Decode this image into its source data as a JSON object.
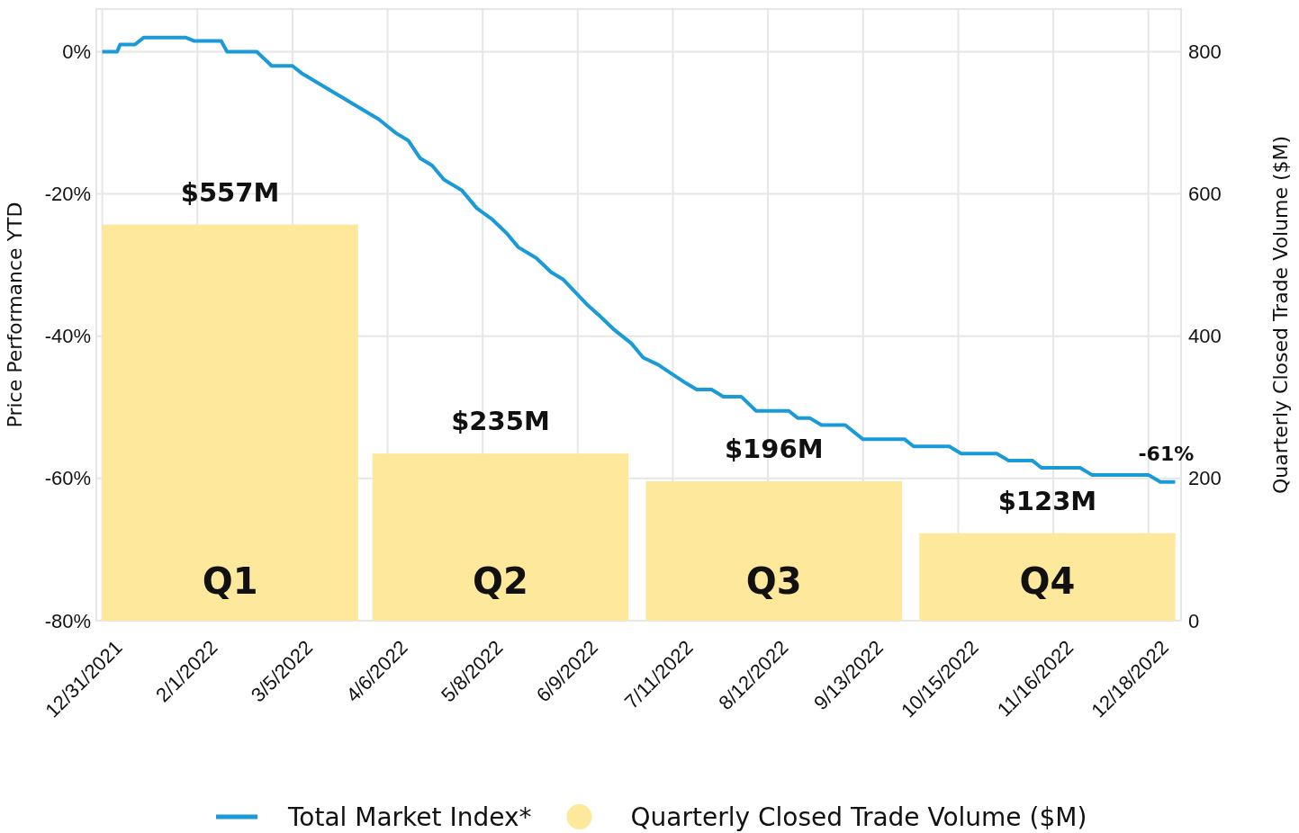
{
  "chart_data": {
    "type": "line",
    "ylabel": "Price Performance YTD",
    "y2label": "Quarterly  Closed Trade Volume ($M)",
    "xlim": [
      "2021-12-29",
      "2022-12-29"
    ],
    "ylim": [
      -80,
      6
    ],
    "y2lim": [
      0,
      860
    ],
    "xticks": [
      {
        "value": "2021-12-31",
        "label": "12/31/2021"
      },
      {
        "value": "2022-02-01",
        "label": "2/1/2022"
      },
      {
        "value": "2022-03-05",
        "label": "3/5/2022"
      },
      {
        "value": "2022-04-06",
        "label": "4/6/2022"
      },
      {
        "value": "2022-05-08",
        "label": "5/8/2022"
      },
      {
        "value": "2022-06-09",
        "label": "6/9/2022"
      },
      {
        "value": "2022-07-11",
        "label": "7/11/2022"
      },
      {
        "value": "2022-08-12",
        "label": "8/12/2022"
      },
      {
        "value": "2022-09-13",
        "label": "9/13/2022"
      },
      {
        "value": "2022-10-15",
        "label": "10/15/2022"
      },
      {
        "value": "2022-11-16",
        "label": "11/16/2022"
      },
      {
        "value": "2022-12-18",
        "label": "12/18/2022"
      }
    ],
    "yticks": [
      {
        "value": -80,
        "label": "-80%"
      },
      {
        "value": -60,
        "label": "-60%"
      },
      {
        "value": -40,
        "label": "-40%"
      },
      {
        "value": -20,
        "label": "-20%"
      },
      {
        "value": 0,
        "label": "0%"
      }
    ],
    "y2ticks": [
      0,
      200,
      400,
      600,
      800
    ],
    "grid": true,
    "legend": "bottom",
    "series": [
      {
        "name": "Quarterly Closed Trade Volume ($M)",
        "type": "bar",
        "axis": "y2",
        "color": "#fde89b",
        "x": [
          "2022-02-12",
          "2022-05-14",
          "2022-08-14",
          "2022-11-14"
        ],
        "values": [
          557,
          235,
          196,
          123
        ],
        "value_labels": [
          "$557M",
          "$235M",
          "$196M",
          "$123M"
        ]
      },
      {
        "name": "Total Market Index*",
        "color": "#1a9ad6",
        "x": [
          "2021-12-31",
          "2022-01-05",
          "2022-01-06",
          "2022-01-11",
          "2022-01-14",
          "2022-01-28",
          "2022-01-31",
          "2022-02-09",
          "2022-02-11",
          "2022-02-21",
          "2022-02-26",
          "2022-03-05",
          "2022-03-08",
          "2022-04-03",
          "2022-04-06",
          "2022-04-09",
          "2022-04-13",
          "2022-04-17",
          "2022-04-21",
          "2022-04-25",
          "2022-05-01",
          "2022-05-06",
          "2022-05-11",
          "2022-05-16",
          "2022-05-20",
          "2022-05-26",
          "2022-05-31",
          "2022-06-04",
          "2022-06-12",
          "2022-06-16",
          "2022-06-21",
          "2022-06-27",
          "2022-07-01",
          "2022-07-06",
          "2022-07-15",
          "2022-07-19",
          "2022-07-24",
          "2022-07-28",
          "2022-08-03",
          "2022-08-08",
          "2022-08-19",
          "2022-08-22",
          "2022-08-26",
          "2022-08-30",
          "2022-09-07",
          "2022-09-13",
          "2022-09-27",
          "2022-09-30",
          "2022-10-12",
          "2022-10-16",
          "2022-10-28",
          "2022-11-01",
          "2022-11-09",
          "2022-11-12",
          "2022-11-25",
          "2022-11-29",
          "2022-12-18",
          "2022-12-22",
          "2022-12-27"
        ],
        "values": [
          0,
          0,
          1,
          1,
          2,
          2,
          1.5,
          1.5,
          0,
          0,
          -2,
          -2,
          -3,
          -9.5,
          -10.5,
          -11.5,
          -12.5,
          -15,
          -16,
          -18,
          -19.5,
          -22,
          -23.5,
          -25.5,
          -27.5,
          -29,
          -31,
          -32,
          -35.5,
          -37,
          -39,
          -41,
          -43,
          -44,
          -46.5,
          -47.5,
          -47.5,
          -48.5,
          -48.5,
          -50.5,
          -50.5,
          -51.5,
          -51.5,
          -52.5,
          -52.5,
          -54.5,
          -54.5,
          -55.5,
          -55.5,
          -56.5,
          -56.5,
          -57.5,
          -57.5,
          -58.5,
          -58.5,
          -59.5,
          -59.5,
          -60.5,
          -60.5
        ]
      }
    ],
    "annotations": [
      "Q1",
      "Q2",
      "Q3",
      "Q4",
      "-61%"
    ]
  }
}
